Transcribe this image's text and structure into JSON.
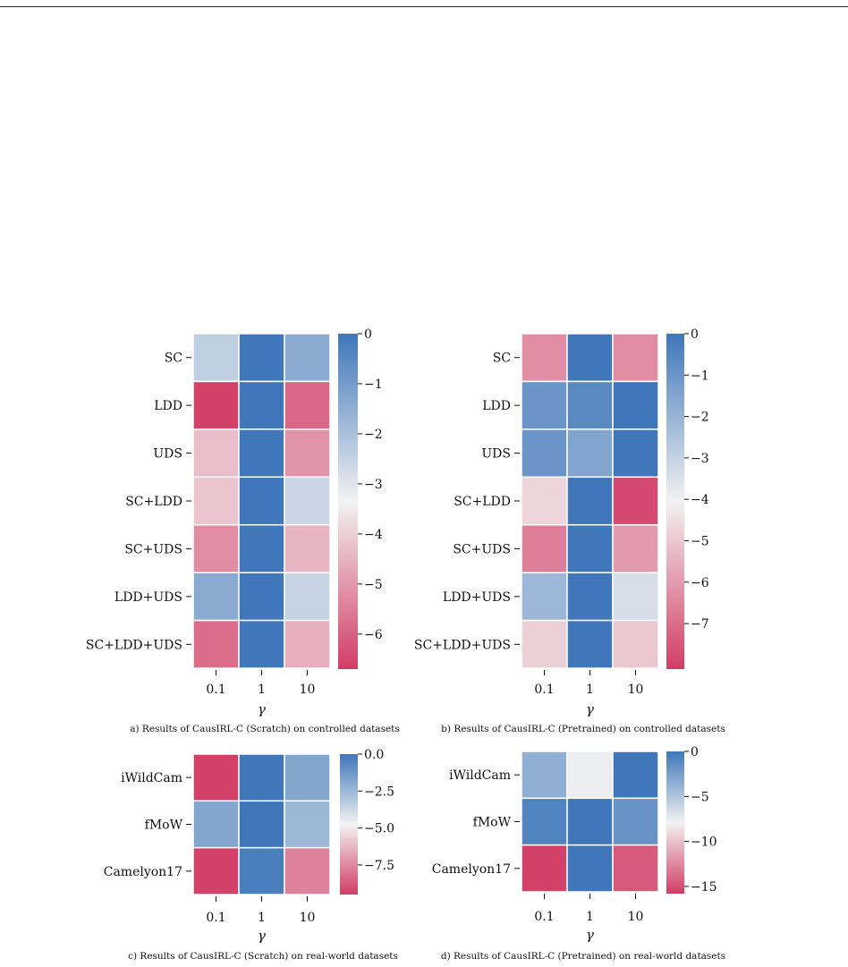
{
  "colors": {
    "low": "#d23c65",
    "mid": "#f2f2f2",
    "high": "#3f77ba"
  },
  "chart_data": [
    {
      "type": "heatmap",
      "caption": "a) Results of CausIRL-C (Scratch) on controlled datasets",
      "xlabel": "γ",
      "x": [
        "0.1",
        "1",
        "10"
      ],
      "y": [
        "SC",
        "LDD",
        "UDS",
        "SC+LDD",
        "SC+UDS",
        "LDD+UDS",
        "SC+LDD+UDS"
      ],
      "values": [
        [
          -2.4,
          0,
          -1.4
        ],
        [
          -6.6,
          0,
          -5.9
        ],
        [
          -4.3,
          0,
          -5.1
        ],
        [
          -4.2,
          0,
          -2.6
        ],
        [
          -5.2,
          0,
          -4.5
        ],
        [
          -1.4,
          0,
          -2.5
        ],
        [
          -5.8,
          0,
          -4.6
        ]
      ],
      "colorbar": {
        "min": -6.7,
        "max": 0,
        "ticks": [
          0,
          -1,
          -2,
          -3,
          -4,
          -5,
          -6
        ],
        "tick_labels": [
          "0",
          "−1",
          "−2",
          "−3",
          "−4",
          "−5",
          "−6"
        ]
      }
    },
    {
      "type": "heatmap",
      "caption": "b) Results of CausIRL-C (Pretrained) on controlled datasets",
      "xlabel": "γ",
      "x": [
        "0.1",
        "1",
        "10"
      ],
      "y": [
        "SC",
        "LDD",
        "UDS",
        "SC+LDD",
        "SC+UDS",
        "LDD+UDS",
        "SC+LDD+UDS"
      ],
      "values": [
        [
          -6.3,
          0,
          -6.3
        ],
        [
          -1.0,
          -0.6,
          0
        ],
        [
          -1.0,
          -1.5,
          0
        ],
        [
          -4.7,
          0,
          -7.8
        ],
        [
          -6.6,
          0,
          -6.0
        ],
        [
          -2.1,
          0,
          -3.4
        ],
        [
          -4.8,
          0,
          -5.0
        ]
      ],
      "colorbar": {
        "min": -8.1,
        "max": 0,
        "ticks": [
          0,
          -1,
          -2,
          -3,
          -4,
          -5,
          -6,
          -7
        ],
        "tick_labels": [
          "0",
          "−1",
          "−2",
          "−3",
          "−4",
          "−5",
          "−6",
          "−7"
        ]
      }
    },
    {
      "type": "heatmap",
      "caption": "c) Results of CausIRL-C (Scratch) on real-world datasets",
      "xlabel": "γ",
      "x": [
        "0.1",
        "1",
        "10"
      ],
      "y": [
        "iWildCam",
        "fMoW",
        "Camelyon17"
      ],
      "values": [
        [
          -9.4,
          0,
          -1.8
        ],
        [
          -1.8,
          0,
          -2.5
        ],
        [
          -9.4,
          -0.3,
          -7.7
        ]
      ],
      "colorbar": {
        "min": -9.5,
        "max": 0,
        "ticks": [
          0,
          -2.5,
          -5,
          -7.5
        ],
        "tick_labels": [
          "0.0",
          "−2.5",
          "−5.0",
          "−7.5"
        ]
      }
    },
    {
      "type": "heatmap",
      "caption": "d) Results of CausIRL-C (Pretrained) on real-world datasets",
      "xlabel": "γ",
      "x": [
        "0.1",
        "1",
        "10"
      ],
      "y": [
        "iWildCam",
        "fMoW",
        "Camelyon17"
      ],
      "values": [
        [
          -3.6,
          -7.6,
          0
        ],
        [
          -0.8,
          0,
          -1.8
        ],
        [
          -15.6,
          0,
          -14.5
        ]
      ],
      "colorbar": {
        "min": -15.8,
        "max": 0,
        "ticks": [
          0,
          -5,
          -10,
          -15
        ],
        "tick_labels": [
          "0",
          "−5",
          "−10",
          "−15"
        ]
      }
    }
  ]
}
